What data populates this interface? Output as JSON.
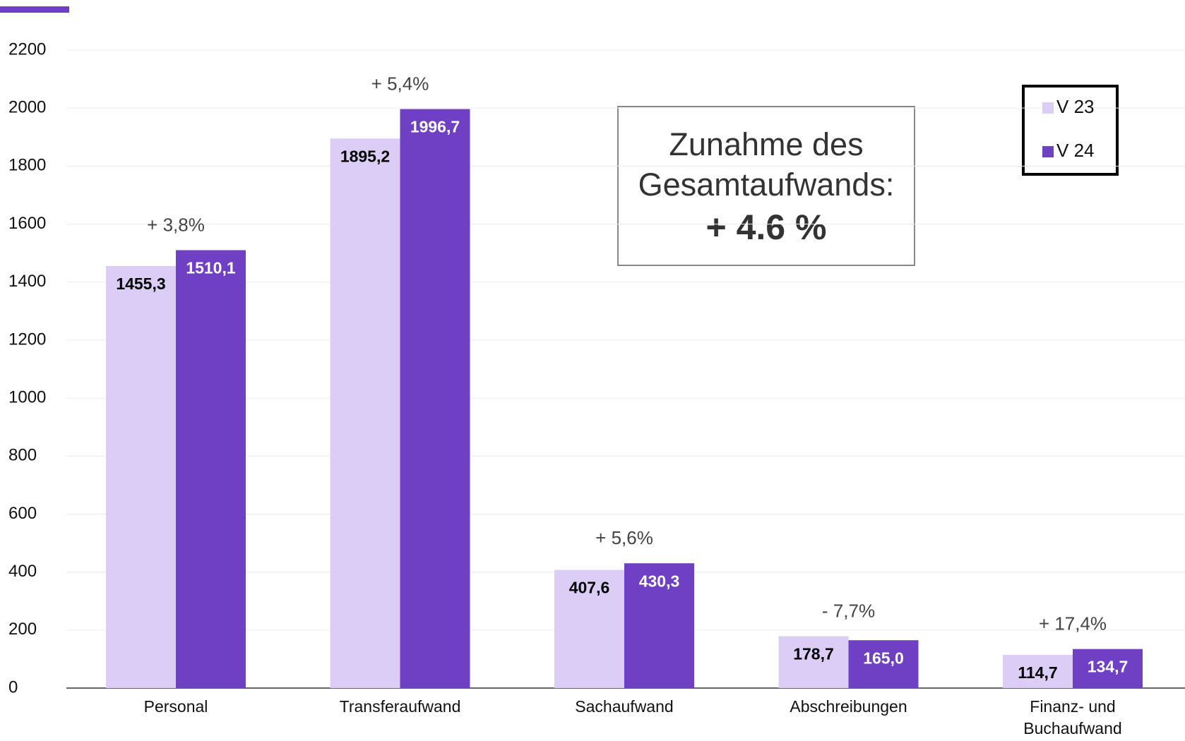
{
  "chart_data": {
    "type": "bar",
    "categories": [
      "Personal",
      "Transferaufwand",
      "Sachaufwand",
      "Abschreibungen",
      "Finanz- und Buchaufwand"
    ],
    "series": [
      {
        "name": "V 23",
        "color": "#dccdf7",
        "values": [
          1455.3,
          1895.2,
          407.6,
          178.7,
          114.7
        ],
        "value_labels": [
          "1455,3",
          "1895,2",
          "407,6",
          "178,7",
          "114,7"
        ]
      },
      {
        "name": "V 24",
        "color": "#6f3fc4",
        "values": [
          1510.1,
          1996.7,
          430.3,
          165.0,
          134.7
        ],
        "value_labels": [
          "1510,1",
          "1996,7",
          "430,3",
          "165,0",
          "134,7"
        ]
      }
    ],
    "change_labels": [
      "+ 3,8%",
      "+ 5,4%",
      "+ 5,6%",
      "- 7,7%",
      "+ 17,4%"
    ],
    "textbox": [
      "Zunahme des",
      "Gesamtaufwands:",
      "+ 4.6 %"
    ],
    "ylim": [
      0,
      2200
    ],
    "yticks": [
      0,
      200,
      400,
      600,
      800,
      1000,
      1200,
      1400,
      1600,
      1800,
      2000,
      2200
    ],
    "grid": true,
    "legend": "top-right"
  }
}
